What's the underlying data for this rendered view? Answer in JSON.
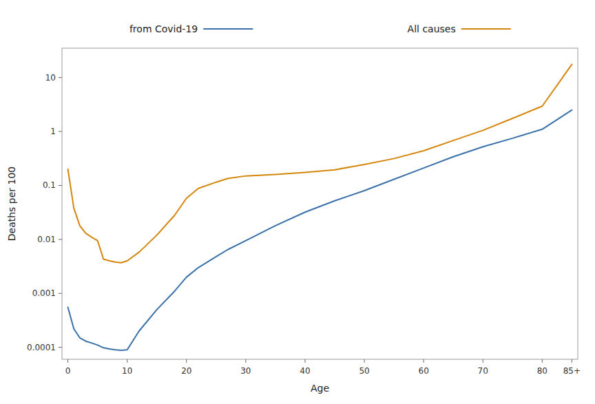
{
  "chart_data": {
    "type": "line",
    "x_label": "Age",
    "y_label": "Deaths per 100",
    "x": [
      0,
      1,
      2,
      3,
      4,
      5,
      6,
      7,
      8,
      9,
      10,
      12,
      15,
      18,
      20,
      22,
      25,
      27,
      30,
      35,
      40,
      45,
      50,
      55,
      60,
      65,
      70,
      75,
      80,
      85
    ],
    "series": [
      {
        "name": "from Covid-19",
        "color": "#3a70a8",
        "values": [
          0.00055,
          0.00022,
          0.00015,
          0.00013,
          0.00012,
          0.00011,
          9.8e-05,
          9.3e-05,
          9e-05,
          8.8e-05,
          9e-05,
          0.0002,
          0.0005,
          0.0011,
          0.002,
          0.003,
          0.0048,
          0.0065,
          0.0095,
          0.018,
          0.032,
          0.052,
          0.08,
          0.13,
          0.21,
          0.34,
          0.52,
          0.75,
          1.1,
          2.5
        ]
      },
      {
        "name": "All causes",
        "color": "#d4860a",
        "values": [
          0.2,
          0.038,
          0.018,
          0.013,
          0.011,
          0.0095,
          0.0043,
          0.004,
          0.0038,
          0.0037,
          0.004,
          0.0058,
          0.012,
          0.028,
          0.058,
          0.088,
          0.115,
          0.135,
          0.15,
          0.16,
          0.175,
          0.195,
          0.245,
          0.315,
          0.44,
          0.68,
          1.05,
          1.75,
          2.95,
          17.5
        ]
      }
    ],
    "xlim": [
      -1,
      86
    ],
    "xticks": [
      0,
      10,
      20,
      30,
      40,
      50,
      60,
      70,
      80,
      {
        "value": 85,
        "label": "85+"
      }
    ],
    "ylim": [
      6e-05,
      35
    ],
    "yticks": [
      0.0001,
      0.001,
      0.01,
      0.1,
      1,
      10
    ],
    "log": "y",
    "grid": false,
    "legend": "top"
  }
}
